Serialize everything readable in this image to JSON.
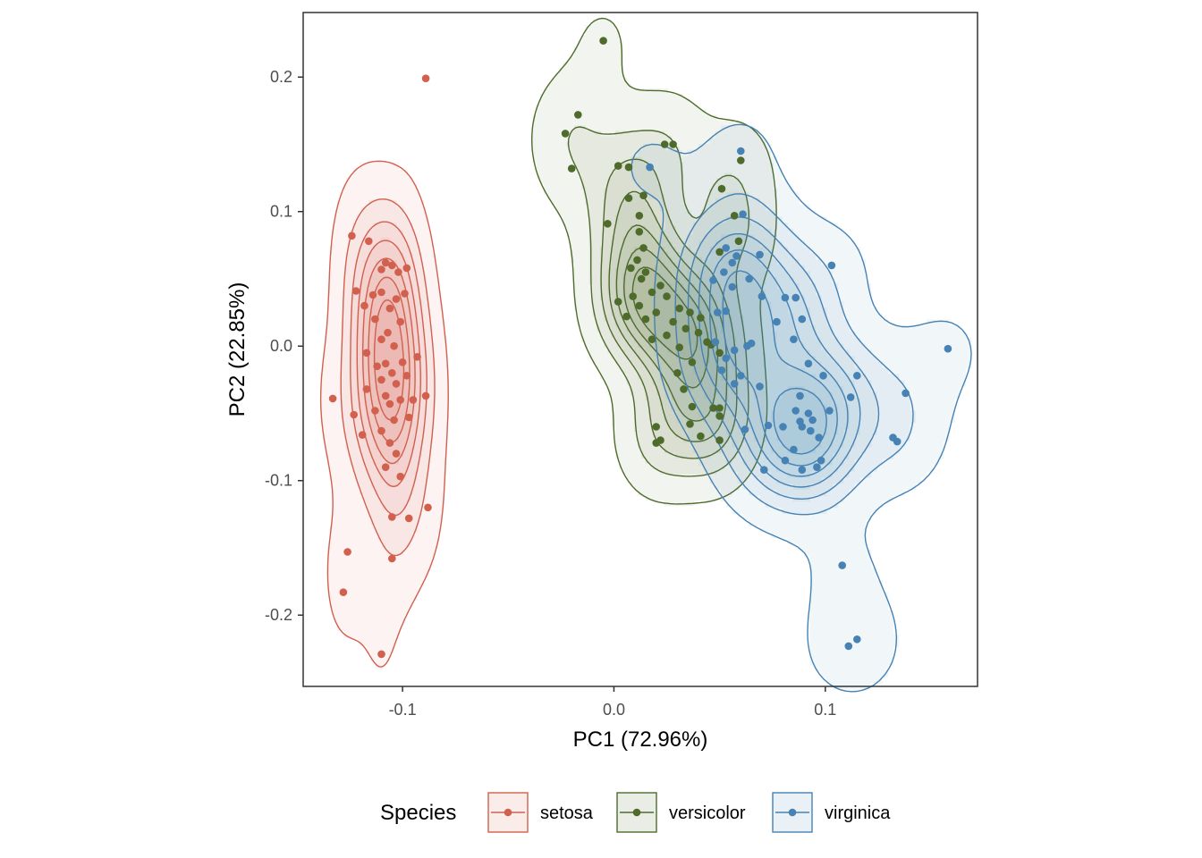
{
  "chart_data": {
    "type": "scatter",
    "xlabel": "PC1 (72.96%)",
    "ylabel": "PC2 (22.85%)",
    "xlim": [
      -0.147,
      0.172
    ],
    "ylim": [
      -0.253,
      0.248
    ],
    "x_ticks": [
      -0.1,
      0.0,
      0.1
    ],
    "x_tick_labels": [
      "-0.1",
      "0.0",
      "0.1"
    ],
    "y_ticks": [
      -0.2,
      -0.1,
      0.0,
      0.1,
      0.2
    ],
    "y_tick_labels": [
      "-0.2",
      "-0.1",
      "0.0",
      "0.1",
      "0.2"
    ],
    "grid": false,
    "legend": {
      "title": "Species",
      "position": "bottom"
    },
    "density_contours": true,
    "series": [
      {
        "name": "setosa",
        "color": "#D1604E",
        "points": [
          [
            -0.089,
            0.199
          ],
          [
            -0.124,
            0.082
          ],
          [
            -0.116,
            0.078
          ],
          [
            -0.108,
            0.062
          ],
          [
            -0.11,
            0.057
          ],
          [
            -0.105,
            0.06
          ],
          [
            -0.098,
            0.058
          ],
          [
            -0.102,
            0.055
          ],
          [
            -0.122,
            0.041
          ],
          [
            -0.114,
            0.038
          ],
          [
            -0.11,
            0.04
          ],
          [
            -0.099,
            0.039
          ],
          [
            -0.103,
            0.035
          ],
          [
            -0.118,
            0.03
          ],
          [
            -0.106,
            0.028
          ],
          [
            -0.113,
            0.02
          ],
          [
            -0.101,
            0.018
          ],
          [
            -0.107,
            0.01
          ],
          [
            -0.11,
            0.005
          ],
          [
            -0.104,
            0.0
          ],
          [
            -0.117,
            -0.005
          ],
          [
            -0.093,
            -0.008
          ],
          [
            -0.1,
            -0.012
          ],
          [
            -0.108,
            -0.013
          ],
          [
            -0.112,
            -0.015
          ],
          [
            -0.105,
            -0.02
          ],
          [
            -0.098,
            -0.022
          ],
          [
            -0.11,
            -0.025
          ],
          [
            -0.103,
            -0.028
          ],
          [
            -0.117,
            -0.032
          ],
          [
            -0.108,
            -0.037
          ],
          [
            -0.095,
            -0.04
          ],
          [
            -0.101,
            -0.04
          ],
          [
            -0.089,
            -0.037
          ],
          [
            -0.133,
            -0.039
          ],
          [
            -0.106,
            -0.043
          ],
          [
            -0.113,
            -0.048
          ],
          [
            -0.123,
            -0.051
          ],
          [
            -0.097,
            -0.053
          ],
          [
            -0.104,
            -0.055
          ],
          [
            -0.11,
            -0.063
          ],
          [
            -0.119,
            -0.066
          ],
          [
            -0.106,
            -0.072
          ],
          [
            -0.103,
            -0.08
          ],
          [
            -0.108,
            -0.09
          ],
          [
            -0.101,
            -0.097
          ],
          [
            -0.088,
            -0.12
          ],
          [
            -0.105,
            -0.127
          ],
          [
            -0.097,
            -0.128
          ],
          [
            -0.126,
            -0.153
          ],
          [
            -0.105,
            -0.158
          ],
          [
            -0.128,
            -0.183
          ],
          [
            -0.11,
            -0.229
          ]
        ]
      },
      {
        "name": "versicolor",
        "color": "#4E6B2C",
        "points": [
          [
            -0.005,
            0.227
          ],
          [
            -0.017,
            0.172
          ],
          [
            -0.023,
            0.158
          ],
          [
            -0.02,
            0.132
          ],
          [
            0.002,
            0.134
          ],
          [
            0.007,
            0.133
          ],
          [
            0.024,
            0.15
          ],
          [
            0.028,
            0.15
          ],
          [
            0.014,
            0.112
          ],
          [
            0.007,
            0.11
          ],
          [
            0.012,
            0.097
          ],
          [
            -0.003,
            0.091
          ],
          [
            0.012,
            0.085
          ],
          [
            0.014,
            0.073
          ],
          [
            0.011,
            0.064
          ],
          [
            0.008,
            0.058
          ],
          [
            0.015,
            0.055
          ],
          [
            0.013,
            0.05
          ],
          [
            0.022,
            0.045
          ],
          [
            0.018,
            0.04
          ],
          [
            0.009,
            0.037
          ],
          [
            0.025,
            0.037
          ],
          [
            0.002,
            0.033
          ],
          [
            0.012,
            0.03
          ],
          [
            0.031,
            0.028
          ],
          [
            0.02,
            0.025
          ],
          [
            0.036,
            0.025
          ],
          [
            0.006,
            0.022
          ],
          [
            0.015,
            0.02
          ],
          [
            0.028,
            0.018
          ],
          [
            0.041,
            0.021
          ],
          [
            0.034,
            0.013
          ],
          [
            0.04,
            0.01
          ],
          [
            0.025,
            0.008
          ],
          [
            0.044,
            0.003
          ],
          [
            0.018,
            0.005
          ],
          [
            0.031,
            -0.001
          ],
          [
            0.046,
            0.001
          ],
          [
            0.05,
            -0.005
          ],
          [
            0.037,
            -0.012
          ],
          [
            0.03,
            -0.02
          ],
          [
            0.033,
            -0.032
          ],
          [
            0.037,
            -0.045
          ],
          [
            0.047,
            -0.046
          ],
          [
            0.05,
            -0.046
          ],
          [
            0.036,
            -0.058
          ],
          [
            0.02,
            -0.06
          ],
          [
            0.022,
            -0.07
          ],
          [
            0.041,
            -0.067
          ],
          [
            0.05,
            -0.07
          ],
          [
            0.02,
            -0.072
          ],
          [
            0.05,
            -0.052
          ],
          [
            0.06,
            0.138
          ],
          [
            0.051,
            0.117
          ],
          [
            0.057,
            0.097
          ],
          [
            0.05,
            0.07
          ],
          [
            0.059,
            0.078
          ]
        ]
      },
      {
        "name": "virginica",
        "color": "#4682B4",
        "points": [
          [
            0.06,
            0.145
          ],
          [
            0.017,
            0.133
          ],
          [
            0.061,
            0.098
          ],
          [
            0.053,
            0.073
          ],
          [
            0.069,
            0.068
          ],
          [
            0.058,
            0.067
          ],
          [
            0.056,
            0.062
          ],
          [
            0.103,
            0.06
          ],
          [
            0.052,
            0.055
          ],
          [
            0.064,
            0.05
          ],
          [
            0.047,
            0.049
          ],
          [
            0.056,
            0.044
          ],
          [
            0.081,
            0.036
          ],
          [
            0.07,
            0.037
          ],
          [
            0.086,
            0.036
          ],
          [
            0.049,
            0.025
          ],
          [
            0.053,
            0.026
          ],
          [
            0.077,
            0.018
          ],
          [
            0.089,
            0.02
          ],
          [
            0.065,
            0.002
          ],
          [
            0.057,
            -0.003
          ],
          [
            0.048,
            0.003
          ],
          [
            0.063,
            0.0
          ],
          [
            0.085,
            0.005
          ],
          [
            0.092,
            -0.013
          ],
          [
            0.051,
            -0.018
          ],
          [
            0.057,
            -0.028
          ],
          [
            0.069,
            -0.03
          ],
          [
            0.06,
            -0.022
          ],
          [
            0.099,
            -0.022
          ],
          [
            0.112,
            -0.038
          ],
          [
            0.088,
            -0.037
          ],
          [
            0.086,
            -0.048
          ],
          [
            0.092,
            -0.05
          ],
          [
            0.089,
            -0.06
          ],
          [
            0.094,
            -0.055
          ],
          [
            0.088,
            -0.056
          ],
          [
            0.073,
            -0.059
          ],
          [
            0.08,
            -0.06
          ],
          [
            0.093,
            -0.063
          ],
          [
            0.102,
            -0.048
          ],
          [
            0.115,
            -0.022
          ],
          [
            0.097,
            -0.068
          ],
          [
            0.085,
            -0.077
          ],
          [
            0.098,
            -0.085
          ],
          [
            0.081,
            -0.085
          ],
          [
            0.096,
            -0.09
          ],
          [
            0.062,
            -0.062
          ],
          [
            0.071,
            -0.092
          ],
          [
            0.089,
            -0.092
          ],
          [
            0.134,
            -0.071
          ],
          [
            0.132,
            -0.068
          ],
          [
            0.138,
            -0.035
          ],
          [
            0.158,
            -0.002
          ],
          [
            0.108,
            -0.163
          ],
          [
            0.111,
            -0.223
          ],
          [
            0.115,
            -0.218
          ],
          [
            0.053,
            -0.009
          ]
        ]
      }
    ]
  }
}
